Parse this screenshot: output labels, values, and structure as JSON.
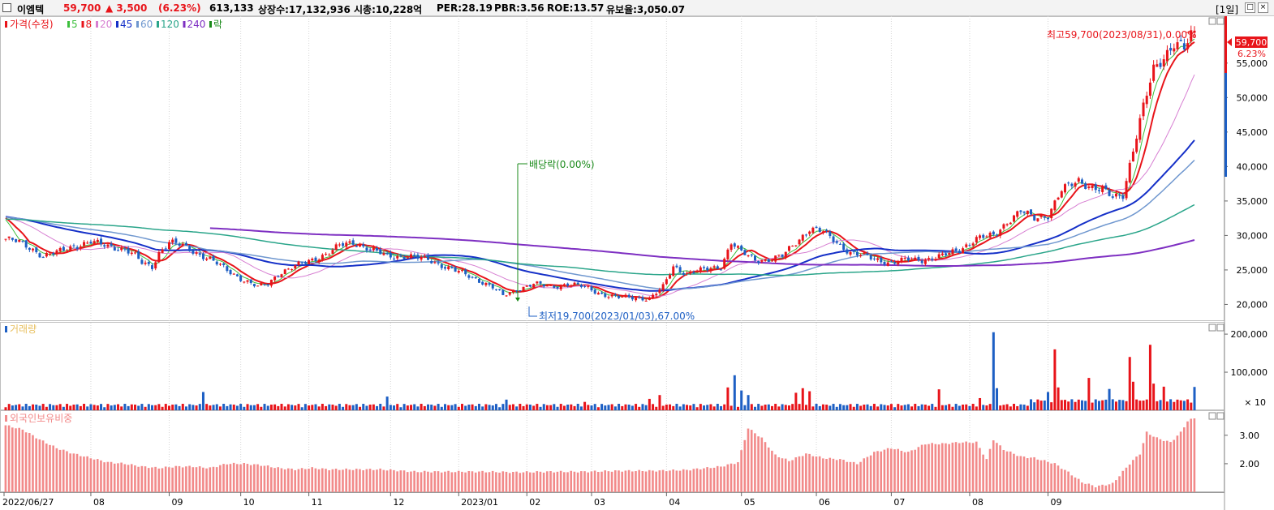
{
  "header": {
    "name": "이엠텍",
    "price": "59,700",
    "change": "▲ 3,500",
    "change_pct": "(6.23%)",
    "volume": "613,133",
    "listed": "상장수:17,132,936",
    "mcap": "시총:10,228억",
    "per": "PER:28.19",
    "pbr": "PBR:3.56",
    "roe": "ROE:13.57",
    "reserve": "유보율:3,050.07",
    "period": "[1일]",
    "btn_restore": "□",
    "btn_close": "×"
  },
  "colors": {
    "up": "#e8141a",
    "down": "#1d5fc4",
    "ma5": "#3cbf3c",
    "ma8": "#e8141a",
    "ma20": "#d77fd2",
    "ma45": "#1530c8",
    "ma60": "#6f97cf",
    "ma120": "#2aa58a",
    "ma240": "#7e2fc2",
    "foreign": "#f28a8a"
  },
  "legend": {
    "price_label": "가격(수정)",
    "ma": [
      {
        "label": "5",
        "color": "#3cbf3c"
      },
      {
        "label": "8",
        "color": "#e8141a"
      },
      {
        "label": "20",
        "color": "#d77fd2"
      },
      {
        "label": "45",
        "color": "#1530c8"
      },
      {
        "label": "60",
        "color": "#6f97cf"
      },
      {
        "label": "120",
        "color": "#2aa58a"
      },
      {
        "label": "240",
        "color": "#7e2fc2"
      }
    ],
    "ex_label": "락",
    "volume_label": "거래량",
    "foreign_label": "외국인보유비중"
  },
  "annotations": {
    "high": "최고59,700(2023/08/31),0.00%",
    "low": "최저19,700(2023/01/03),67.00%",
    "dividend": "배당락(0.00%)",
    "current_price": "59,700",
    "current_pct": "6.23%",
    "volume_unit": "× 10"
  },
  "chart_data": [
    {
      "type": "candlestick",
      "title": "가격(수정)",
      "x_tick_labels": [
        "2022/06/27",
        "08",
        "09",
        "10",
        "11",
        "12",
        "2023/01",
        "02",
        "03",
        "04",
        "05",
        "06",
        "07",
        "08",
        "09"
      ],
      "y_tick_labels": [
        "20,000",
        "25,000",
        "30,000",
        "35,000",
        "40,000",
        "45,000",
        "50,000",
        "55,000"
      ],
      "ylim": [
        17700,
        61800
      ],
      "close_anchors": [
        [
          0,
          29500
        ],
        [
          4,
          29000
        ],
        [
          8,
          28000
        ],
        [
          11,
          27000
        ],
        [
          15,
          27500
        ],
        [
          20,
          28500
        ],
        [
          25,
          29000
        ],
        [
          30,
          28500
        ],
        [
          35,
          28000
        ],
        [
          38,
          27000
        ],
        [
          40,
          26000
        ],
        [
          43,
          25500
        ],
        [
          45,
          27500
        ],
        [
          48,
          29000
        ],
        [
          52,
          28500
        ],
        [
          56,
          27500
        ],
        [
          60,
          26500
        ],
        [
          65,
          25000
        ],
        [
          70,
          23500
        ],
        [
          74,
          22500
        ],
        [
          77,
          23000
        ],
        [
          80,
          24500
        ],
        [
          85,
          25500
        ],
        [
          90,
          26500
        ],
        [
          95,
          27500
        ],
        [
          98,
          28500
        ],
        [
          102,
          29000
        ],
        [
          107,
          28000
        ],
        [
          112,
          27000
        ],
        [
          118,
          27000
        ],
        [
          124,
          26500
        ],
        [
          129,
          25500
        ],
        [
          134,
          24500
        ],
        [
          139,
          23500
        ],
        [
          143,
          22500
        ],
        [
          146,
          21200
        ],
        [
          150,
          22200
        ],
        [
          155,
          23000
        ],
        [
          160,
          22500
        ],
        [
          165,
          23000
        ],
        [
          170,
          22500
        ],
        [
          175,
          21500
        ],
        [
          180,
          21000
        ],
        [
          185,
          21000
        ],
        [
          189,
          20800
        ],
        [
          193,
          22500
        ],
        [
          196,
          25500
        ],
        [
          200,
          24500
        ],
        [
          205,
          25000
        ],
        [
          210,
          25500
        ],
        [
          213,
          29000
        ],
        [
          216,
          27500
        ],
        [
          220,
          26500
        ],
        [
          224,
          26500
        ],
        [
          228,
          27000
        ],
        [
          232,
          29000
        ],
        [
          236,
          31000
        ],
        [
          240,
          30500
        ],
        [
          244,
          29000
        ],
        [
          248,
          27500
        ],
        [
          252,
          27000
        ],
        [
          256,
          26500
        ],
        [
          260,
          26000
        ],
        [
          265,
          26500
        ],
        [
          270,
          26500
        ],
        [
          275,
          27000
        ],
        [
          280,
          28000
        ],
        [
          285,
          29500
        ],
        [
          290,
          30000
        ],
        [
          294,
          32000
        ],
        [
          298,
          33500
        ],
        [
          302,
          32500
        ],
        [
          306,
          33000
        ],
        [
          310,
          36500
        ],
        [
          315,
          38000
        ],
        [
          319,
          37000
        ],
        [
          322,
          36500
        ],
        [
          325,
          35500
        ],
        [
          328,
          36000
        ],
        [
          331,
          42500
        ],
        [
          334,
          48500
        ],
        [
          337,
          54000
        ],
        [
          340,
          56000
        ],
        [
          343,
          58000
        ],
        [
          346,
          57000
        ],
        [
          349,
          59700
        ]
      ],
      "ma_windows": [
        5,
        8,
        20,
        45,
        60,
        120,
        240
      ],
      "low_point": {
        "date": "2023/01/03",
        "value": 19700
      },
      "high_point": {
        "date": "2023/08/31",
        "value": 59700
      },
      "last": {
        "value": 59700,
        "change": 3500,
        "change_pct": 6.23
      }
    },
    {
      "type": "bar",
      "title": "거래량",
      "y_tick_labels": [
        "100,000",
        "200,000"
      ],
      "unit": "× 10",
      "ylim": [
        0,
        230000
      ],
      "baseline": 8000,
      "spikes": [
        {
          "i": 58,
          "v": 48000
        },
        {
          "i": 112,
          "v": 36000
        },
        {
          "i": 147,
          "v": 28000
        },
        {
          "i": 170,
          "v": 22000
        },
        {
          "i": 189,
          "v": 30000
        },
        {
          "i": 192,
          "v": 40000
        },
        {
          "i": 212,
          "v": 60000
        },
        {
          "i": 214,
          "v": 92000
        },
        {
          "i": 216,
          "v": 52000
        },
        {
          "i": 218,
          "v": 40000
        },
        {
          "i": 232,
          "v": 46000
        },
        {
          "i": 234,
          "v": 58000
        },
        {
          "i": 236,
          "v": 50000
        },
        {
          "i": 274,
          "v": 55000
        },
        {
          "i": 286,
          "v": 32000
        },
        {
          "i": 290,
          "v": 205000
        },
        {
          "i": 291,
          "v": 58000
        },
        {
          "i": 306,
          "v": 48000
        },
        {
          "i": 308,
          "v": 160000
        },
        {
          "i": 309,
          "v": 60000
        },
        {
          "i": 318,
          "v": 85000
        },
        {
          "i": 324,
          "v": 56000
        },
        {
          "i": 330,
          "v": 140000
        },
        {
          "i": 331,
          "v": 75000
        },
        {
          "i": 336,
          "v": 172000
        },
        {
          "i": 337,
          "v": 70000
        },
        {
          "i": 340,
          "v": 62000
        },
        {
          "i": 349,
          "v": 61313
        }
      ]
    },
    {
      "type": "bar",
      "title": "외국인보유비중",
      "y_tick_labels": [
        "2.00",
        "3.00"
      ],
      "ylim": [
        1.0,
        3.85
      ],
      "anchors": [
        [
          0,
          3.35
        ],
        [
          5,
          3.2
        ],
        [
          10,
          2.85
        ],
        [
          15,
          2.55
        ],
        [
          20,
          2.35
        ],
        [
          25,
          2.2
        ],
        [
          30,
          2.05
        ],
        [
          35,
          2.0
        ],
        [
          40,
          1.9
        ],
        [
          45,
          1.85
        ],
        [
          50,
          1.9
        ],
        [
          55,
          1.9
        ],
        [
          60,
          1.85
        ],
        [
          65,
          2.0
        ],
        [
          70,
          2.0
        ],
        [
          75,
          1.95
        ],
        [
          80,
          1.85
        ],
        [
          85,
          1.8
        ],
        [
          90,
          1.85
        ],
        [
          95,
          1.8
        ],
        [
          100,
          1.8
        ],
        [
          110,
          1.8
        ],
        [
          120,
          1.72
        ],
        [
          130,
          1.72
        ],
        [
          140,
          1.72
        ],
        [
          150,
          1.7
        ],
        [
          160,
          1.72
        ],
        [
          170,
          1.72
        ],
        [
          180,
          1.75
        ],
        [
          190,
          1.75
        ],
        [
          200,
          1.78
        ],
        [
          210,
          1.9
        ],
        [
          215,
          2.05
        ],
        [
          218,
          3.25
        ],
        [
          222,
          2.9
        ],
        [
          226,
          2.3
        ],
        [
          230,
          2.1
        ],
        [
          235,
          2.35
        ],
        [
          240,
          2.2
        ],
        [
          245,
          2.15
        ],
        [
          250,
          2.0
        ],
        [
          255,
          2.4
        ],
        [
          260,
          2.55
        ],
        [
          265,
          2.4
        ],
        [
          270,
          2.7
        ],
        [
          275,
          2.7
        ],
        [
          280,
          2.75
        ],
        [
          285,
          2.75
        ],
        [
          288,
          2.15
        ],
        [
          290,
          2.85
        ],
        [
          293,
          2.5
        ],
        [
          298,
          2.25
        ],
        [
          302,
          2.2
        ],
        [
          305,
          2.1
        ],
        [
          308,
          2.0
        ],
        [
          312,
          1.7
        ],
        [
          316,
          1.35
        ],
        [
          320,
          1.2
        ],
        [
          325,
          1.3
        ],
        [
          330,
          2.0
        ],
        [
          333,
          2.35
        ],
        [
          335,
          3.1
        ],
        [
          338,
          2.9
        ],
        [
          342,
          2.75
        ],
        [
          345,
          3.1
        ],
        [
          347,
          3.5
        ],
        [
          349,
          3.6
        ]
      ]
    }
  ]
}
